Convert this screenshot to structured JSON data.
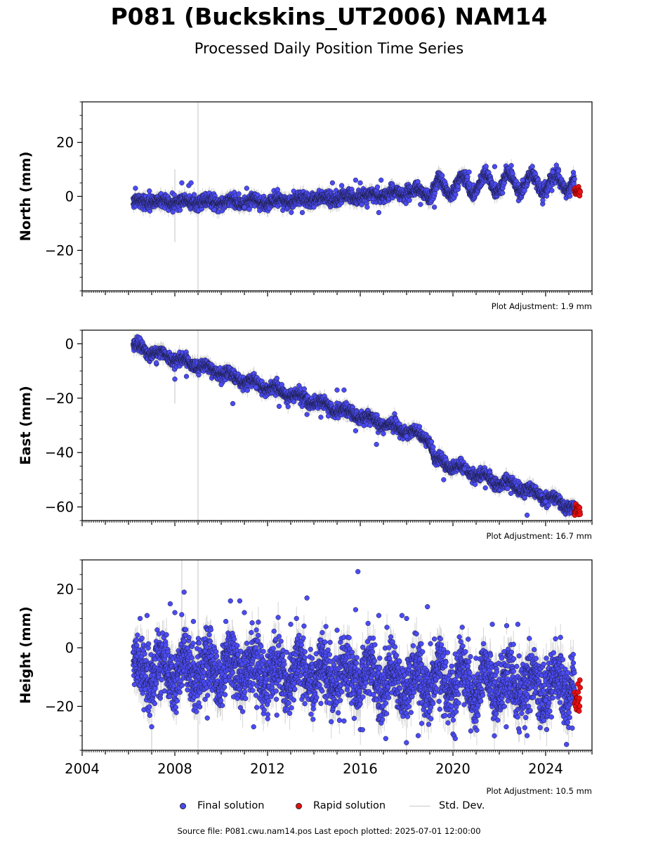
{
  "title": "P081 (Buckskins_UT2006) NAM14",
  "subtitle": "Processed Daily Position Time Series",
  "legend": {
    "final": "Final solution",
    "rapid": "Rapid solution",
    "std": "Std. Dev.",
    "final_color": "#4b4bf5",
    "rapid_color": "#e81010",
    "std_color": "#c8c8c8"
  },
  "source_text": "Source file: P081.cwu.nam14.pos  Last epoch plotted: 2025-07-01 12:00:00",
  "chart_data": [
    {
      "type": "scatter",
      "component": "north",
      "ylabel": "North (mm)",
      "xlim": [
        2004.0,
        2026.0
      ],
      "ylim": [
        -35,
        35
      ],
      "yticks": [
        -20,
        0,
        20
      ],
      "plot_adjustment": "Plot Adjustment: 1.9 mm",
      "data_start": 2006.2,
      "final_end": 2025.25,
      "rapid_end": 2025.5,
      "trend": [
        [
          2006.2,
          -2
        ],
        [
          2012,
          -2
        ],
        [
          2016,
          0
        ],
        [
          2019,
          2
        ],
        [
          2020,
          4
        ],
        [
          2022,
          5
        ],
        [
          2025.3,
          5
        ]
      ],
      "seasonal_amplitude": [
        [
          2006.2,
          0.6
        ],
        [
          2018.5,
          0.8
        ],
        [
          2019.3,
          3.5
        ],
        [
          2025.5,
          3
        ]
      ],
      "noise": 1.2,
      "rapid_level": 2,
      "outliers": [
        [
          2006.3,
          3
        ],
        [
          2006.9,
          2
        ],
        [
          2008.3,
          5
        ],
        [
          2008.6,
          4
        ],
        [
          2008.7,
          5
        ],
        [
          2009.7,
          -5
        ],
        [
          2011.0,
          -4
        ],
        [
          2011.1,
          3
        ],
        [
          2013.5,
          -6
        ],
        [
          2014.0,
          -4
        ],
        [
          2014.8,
          5
        ],
        [
          2015.2,
          4
        ],
        [
          2015.8,
          6
        ],
        [
          2016.0,
          5
        ],
        [
          2016.3,
          -4
        ],
        [
          2016.8,
          -6
        ],
        [
          2016.9,
          6
        ],
        [
          2018.6,
          -3
        ],
        [
          2019.2,
          -4
        ],
        [
          2020.7,
          9
        ],
        [
          2021.8,
          11
        ],
        [
          2023.0,
          6
        ],
        [
          2024.3,
          9
        ]
      ],
      "stddev_spikes": [
        [
          2008.0,
          -17,
          10
        ],
        [
          2009.0,
          -35,
          35
        ]
      ]
    },
    {
      "type": "scatter",
      "component": "east",
      "ylabel": "East (mm)",
      "xlim": [
        2004.0,
        2026.0
      ],
      "ylim": [
        -65,
        5
      ],
      "yticks": [
        -60,
        -40,
        -20,
        0
      ],
      "plot_adjustment": "Plot Adjustment: 16.7 mm",
      "data_start": 2006.2,
      "final_end": 2025.25,
      "rapid_end": 2025.5,
      "trend": [
        [
          2006.2,
          -1
        ],
        [
          2009,
          -8
        ],
        [
          2012,
          -16
        ],
        [
          2015,
          -24
        ],
        [
          2018,
          -32
        ],
        [
          2019,
          -35
        ],
        [
          2019.2,
          -43
        ],
        [
          2020,
          -45
        ],
        [
          2022,
          -51
        ],
        [
          2023,
          -53
        ],
        [
          2025.4,
          -61
        ]
      ],
      "seasonal_amplitude": [
        [
          2006.2,
          1
        ],
        [
          2025.5,
          1.2
        ]
      ],
      "noise": 1.1,
      "rapid_level": -61,
      "outliers": [
        [
          2006.5,
          2
        ],
        [
          2007.2,
          -7
        ],
        [
          2008.0,
          -13
        ],
        [
          2008.5,
          -12
        ],
        [
          2010.0,
          -15
        ],
        [
          2010.5,
          -22
        ],
        [
          2011.5,
          -16
        ],
        [
          2012.5,
          -23
        ],
        [
          2013.7,
          -26
        ],
        [
          2014.3,
          -27
        ],
        [
          2015.0,
          -17
        ],
        [
          2015.3,
          -17
        ],
        [
          2015.8,
          -32
        ],
        [
          2016.7,
          -37
        ],
        [
          2018.0,
          -34
        ],
        [
          2019.6,
          -50
        ],
        [
          2020.5,
          -46
        ],
        [
          2021.4,
          -53
        ],
        [
          2022.5,
          -55
        ],
        [
          2023.2,
          -63
        ],
        [
          2024.0,
          -58
        ]
      ],
      "stddev_spikes": [
        [
          2008.0,
          -22,
          -9
        ],
        [
          2009.0,
          -65,
          5
        ]
      ]
    },
    {
      "type": "scatter",
      "component": "height",
      "ylabel": "Height (mm)",
      "xlim": [
        2004.0,
        2026.0
      ],
      "ylim": [
        -35,
        30
      ],
      "yticks": [
        -20,
        0,
        20
      ],
      "xticks": [
        2004,
        2008,
        2012,
        2016,
        2020,
        2024
      ],
      "plot_adjustment": "Plot Adjustment: 10.5 mm",
      "data_start": 2006.2,
      "final_end": 2025.25,
      "rapid_end": 2025.5,
      "trend": [
        [
          2006.2,
          -8
        ],
        [
          2010,
          -7
        ],
        [
          2014,
          -9
        ],
        [
          2018,
          -12
        ],
        [
          2022,
          -12
        ],
        [
          2025.3,
          -14
        ]
      ],
      "seasonal_amplitude": [
        [
          2006.2,
          4
        ],
        [
          2025.5,
          5
        ]
      ],
      "noise": 5.2,
      "rapid_level": -18,
      "outliers": [
        [
          2006.5,
          10
        ],
        [
          2006.8,
          11
        ],
        [
          2007.0,
          -27
        ],
        [
          2007.8,
          15
        ],
        [
          2008.0,
          12
        ],
        [
          2008.4,
          19
        ],
        [
          2008.8,
          9
        ],
        [
          2009.4,
          -24
        ],
        [
          2010.2,
          9
        ],
        [
          2010.4,
          16
        ],
        [
          2010.8,
          16
        ],
        [
          2011.0,
          12
        ],
        [
          2011.4,
          -27
        ],
        [
          2012.4,
          -23
        ],
        [
          2013.0,
          8
        ],
        [
          2013.7,
          17
        ],
        [
          2014.3,
          -19
        ],
        [
          2015.0,
          6
        ],
        [
          2015.3,
          -25
        ],
        [
          2015.8,
          13
        ],
        [
          2015.9,
          26
        ],
        [
          2016.1,
          -28
        ],
        [
          2016.8,
          11
        ],
        [
          2017.1,
          -31
        ],
        [
          2017.8,
          11
        ],
        [
          2018.0,
          10
        ],
        [
          2018.5,
          -30
        ],
        [
          2018.9,
          14
        ],
        [
          2019.2,
          3
        ],
        [
          2020.1,
          -31
        ],
        [
          2020.4,
          7
        ],
        [
          2021.0,
          -25
        ],
        [
          2021.7,
          8
        ],
        [
          2022.3,
          -27
        ],
        [
          2022.8,
          8
        ],
        [
          2023.2,
          -30
        ],
        [
          2024.0,
          -18
        ],
        [
          2024.9,
          -33
        ]
      ],
      "stddev_spikes": [
        [
          2008.3,
          -12,
          30
        ],
        [
          2009.0,
          -35,
          30
        ],
        [
          2007.0,
          -35,
          -18
        ]
      ]
    }
  ]
}
